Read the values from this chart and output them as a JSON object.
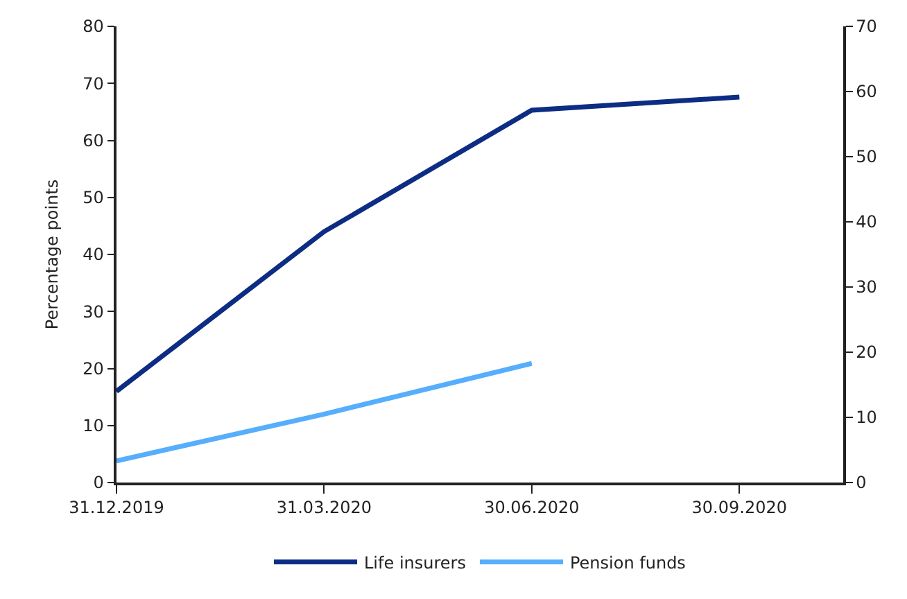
{
  "chart_data": {
    "type": "line",
    "ylabel": "Percentage points",
    "categories": [
      "31.12.2019",
      "31.03.2020",
      "30.06.2020",
      "30.09.2020"
    ],
    "series": [
      {
        "name": "Life insurers",
        "color": "#0c2d83",
        "values": [
          16,
          44,
          65.3,
          67.6
        ]
      },
      {
        "name": "Pension funds",
        "color": "#56aefc",
        "values": [
          3.8,
          12,
          20.9,
          null
        ]
      }
    ],
    "ylim": [
      0,
      80
    ],
    "yticks": [
      0,
      10,
      20,
      30,
      40,
      50,
      60,
      70,
      80
    ],
    "y2lim": [
      0,
      70
    ],
    "y2ticks": [
      0,
      10,
      20,
      30,
      40,
      50,
      60,
      70
    ],
    "legend": "bottom",
    "marker": "none",
    "line_style": "solid"
  }
}
